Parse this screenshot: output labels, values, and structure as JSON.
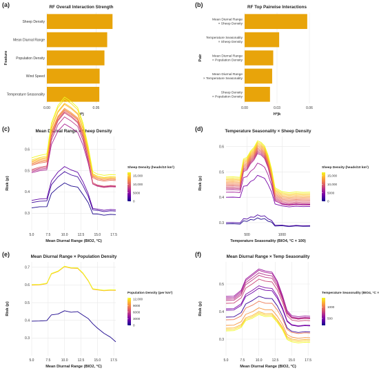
{
  "chart_data": [
    {
      "id": "a",
      "panel_label": "(a)",
      "type": "bar",
      "orientation": "horizontal",
      "title": "RF Overall Interaction Strength",
      "xlabel": "H²j",
      "ylabel": "Feature",
      "categories": [
        "Sheep Density",
        "Mean Diurnal Range",
        "Population Density",
        "Wind Speed",
        "Temperature Seasonality"
      ],
      "values": [
        0.0667,
        0.0613,
        0.0585,
        0.0536,
        0.0533
      ],
      "xlim": [
        0,
        0.07
      ],
      "xticks": [
        "0.00",
        "0.05"
      ],
      "xtick_values": [
        0,
        0.05
      ],
      "bar_color": "#E8A40A",
      "grid": true
    },
    {
      "id": "b",
      "panel_label": "(b)",
      "type": "bar",
      "orientation": "horizontal",
      "title": "RF Top Pairwise Interactions",
      "xlabel": "H²jk",
      "ylabel": "Pair",
      "categories": [
        [
          "Mean Diurnal Range",
          "× Sheep Density"
        ],
        [
          "Temperature Seasonality",
          "× Sheep Density"
        ],
        [
          "Mean Diurnal Range",
          "× Population Density"
        ],
        [
          "Mean Diurnal Range",
          "× Temperature Seasonality"
        ],
        [
          "Sheep Density",
          "× Population Density"
        ]
      ],
      "values": [
        0.058,
        0.032,
        0.0265,
        0.0255,
        0.0235
      ],
      "xlim": [
        0,
        0.06
      ],
      "xticks": [
        "0.00",
        "0.03",
        "0.06"
      ],
      "xtick_values": [
        0,
        0.03,
        0.06
      ],
      "bar_color": "#E8A40A",
      "grid": true
    },
    {
      "id": "c",
      "panel_label": "(c)",
      "type": "line",
      "title": "Mean Diurnal Range × Sheep Density",
      "xlabel": "Mean Diurnal Range (BIO2, °C)",
      "ylabel": "Risk (p)",
      "xlim": [
        5,
        17.8
      ],
      "ylim": [
        0.22,
        0.66
      ],
      "xticks": [
        "5.0",
        "7.5",
        "10.0",
        "12.5",
        "15.0",
        "17.5"
      ],
      "xtick_values": [
        5,
        7.5,
        10,
        12.5,
        15,
        17.5
      ],
      "yticks": [
        "0.3",
        "0.4",
        "0.5",
        "0.6"
      ],
      "ytick_values": [
        0.3,
        0.4,
        0.5,
        0.6
      ],
      "legend": {
        "title": "Sheep Density (heads/10 km²)",
        "ticks": [
          "15,000",
          "10,000",
          "5000",
          "0"
        ],
        "tick_values": [
          15000,
          10000,
          5000,
          0
        ],
        "range": [
          0,
          17000
        ],
        "position": "right"
      },
      "x": [
        5.0,
        6.2,
        7.3,
        8.0,
        9.0,
        10.0,
        11.0,
        12.0,
        12.8,
        13.6,
        14.3,
        15.0,
        16.0,
        17.0,
        17.8
      ],
      "template": [
        0.0,
        0.01,
        0.02,
        0.16,
        0.25,
        0.28,
        0.27,
        0.23,
        0.17,
        0.05,
        -0.06,
        -0.08,
        -0.08,
        -0.08,
        -0.08
      ],
      "series": [
        {
          "value": 17000,
          "base": 0.56,
          "amp": 1.0,
          "curve": 0.55
        },
        {
          "value": 16000,
          "base": 0.55,
          "amp": 1.0,
          "curve": 0.55
        },
        {
          "value": 15000,
          "base": 0.545,
          "amp": 0.95,
          "curve": 0.55
        },
        {
          "value": 14000,
          "base": 0.54,
          "amp": 0.95,
          "curve": 0.55
        },
        {
          "value": 13000,
          "base": 0.535,
          "amp": 0.9,
          "curve": 0.55
        },
        {
          "value": 12000,
          "base": 0.53,
          "amp": 0.9,
          "curve": 0.55
        },
        {
          "value": 11000,
          "base": 0.525,
          "amp": 0.9,
          "curve": 0.55
        },
        {
          "value": 9500,
          "base": 0.505,
          "amp": 0.95,
          "curve": 0.55
        },
        {
          "value": 8500,
          "base": 0.5,
          "amp": 0.95,
          "curve": 0.55
        },
        {
          "value": 7500,
          "base": 0.495,
          "amp": 0.9,
          "curve": 0.55
        },
        {
          "value": 6500,
          "base": 0.49,
          "amp": 0.8,
          "curve": 0.55
        },
        {
          "value": 3000,
          "base": 0.36,
          "amp": 0.55,
          "curve": 0.55
        },
        {
          "value": 1500,
          "base": 0.35,
          "amp": 0.5,
          "curve": 0.55
        },
        {
          "value": 500,
          "base": 0.325,
          "amp": 0.4,
          "curve": 0.55
        }
      ]
    },
    {
      "id": "d",
      "panel_label": "(d)",
      "type": "line",
      "title": "Temperature Seasonality × Sheep Density",
      "xlabel": "Temperature Seasonality (BIO4, °C × 100)",
      "ylabel": "Risk (p)",
      "xlim": [
        200,
        1400
      ],
      "ylim": [
        0.27,
        0.64
      ],
      "xticks": [
        "500",
        "1000"
      ],
      "xtick_values": [
        500,
        1000
      ],
      "yticks": [
        "0.3",
        "0.4",
        "0.5",
        "0.6"
      ],
      "ytick_values": [
        0.3,
        0.4,
        0.5,
        0.6
      ],
      "legend": {
        "title": "Sheep Density (heads/10 km²)",
        "ticks": [
          "15,000",
          "10,000",
          "5000",
          "0"
        ],
        "tick_values": [
          15000,
          10000,
          5000,
          0
        ],
        "range": [
          0,
          17000
        ],
        "position": "right"
      },
      "x": [
        200,
        300,
        400,
        450,
        500,
        550,
        600,
        650,
        700,
        750,
        800,
        850,
        900,
        1000,
        1100,
        1200,
        1300,
        1400
      ],
      "template": [
        0.0,
        0.0,
        0.0,
        0.07,
        0.08,
        0.1,
        0.12,
        0.14,
        0.14,
        0.12,
        0.09,
        0.03,
        -0.04,
        -0.06,
        -0.06,
        -0.06,
        -0.06,
        -0.06
      ],
      "series": [
        {
          "value": 17000,
          "base": 0.48,
          "amp": 1.0,
          "curve": 0.3
        },
        {
          "value": 16000,
          "base": 0.475,
          "amp": 1.0,
          "curve": 0.3
        },
        {
          "value": 15000,
          "base": 0.47,
          "amp": 1.0,
          "curve": 0.3
        },
        {
          "value": 14000,
          "base": 0.465,
          "amp": 1.0,
          "curve": 0.3
        },
        {
          "value": 13000,
          "base": 0.46,
          "amp": 1.0,
          "curve": 0.3
        },
        {
          "value": 12000,
          "base": 0.455,
          "amp": 1.0,
          "curve": 0.3
        },
        {
          "value": 11000,
          "base": 0.45,
          "amp": 1.0,
          "curve": 0.3
        },
        {
          "value": 10000,
          "base": 0.445,
          "amp": 1.0,
          "curve": 0.3
        },
        {
          "value": 9000,
          "base": 0.44,
          "amp": 1.0,
          "curve": 0.3
        },
        {
          "value": 8000,
          "base": 0.435,
          "amp": 1.0,
          "curve": 0.3
        },
        {
          "value": 7000,
          "base": 0.43,
          "amp": 1.0,
          "curve": 0.3
        },
        {
          "value": 6000,
          "base": 0.42,
          "amp": 0.8,
          "curve": 0.3
        },
        {
          "value": 4000,
          "base": 0.4,
          "amp": 0.6,
          "curve": 0.3
        },
        {
          "value": 2000,
          "base": 0.3,
          "amp": 0.2,
          "curve": 0.3
        },
        {
          "value": 500,
          "base": 0.295,
          "amp": 0.15,
          "curve": 0.3
        }
      ]
    },
    {
      "id": "e",
      "panel_label": "(e)",
      "type": "line",
      "title": "Mean Diurnal Range × Population Density",
      "xlabel": "Mean Diurnal Range (BIO2, °C)",
      "ylabel": "Risk (p)",
      "xlim": [
        5,
        17.8
      ],
      "ylim": [
        0.2,
        0.73
      ],
      "xticks": [
        "5.0",
        "7.5",
        "10.0",
        "12.5",
        "15.0",
        "17.5"
      ],
      "xtick_values": [
        5,
        7.5,
        10,
        12.5,
        15,
        17.5
      ],
      "yticks": [
        "0.3",
        "0.4",
        "0.5",
        "0.6",
        "0.7"
      ],
      "ytick_values": [
        0.3,
        0.4,
        0.5,
        0.6,
        0.7
      ],
      "legend": {
        "title": "Population Density (per km²)",
        "ticks": [
          "12,000",
          "9000",
          "6000",
          "3000",
          "0"
        ],
        "tick_values": [
          12000,
          9000,
          6000,
          3000,
          0
        ],
        "range": [
          0,
          12500
        ],
        "position": "right"
      },
      "x": [
        5.0,
        6.2,
        7.3,
        8.0,
        9.0,
        10.0,
        11.0,
        12.0,
        12.8,
        13.6,
        14.3,
        15.0,
        16.0,
        17.0,
        17.8
      ],
      "template": [
        0.0,
        0.0,
        0.01,
        0.06,
        0.08,
        0.1,
        0.1,
        0.09,
        0.07,
        0.02,
        -0.02,
        -0.03,
        -0.03,
        -0.03,
        -0.03
      ],
      "series": [
        {
          "value": 12500,
          "base": 0.602,
          "amp": 1.0,
          "curve": 0.45
        },
        {
          "value": 11500,
          "base": 0.601,
          "amp": 1.0,
          "curve": 0.45
        },
        {
          "value": 10500,
          "base": 0.6,
          "amp": 1.0,
          "curve": 0.45
        },
        {
          "value": 9500,
          "base": 0.599,
          "amp": 1.0,
          "curve": 0.45
        },
        {
          "value": 400,
          "base": 0.395,
          "amp": 0.55,
          "curve": 0.45,
          "drop": -0.1
        }
      ]
    },
    {
      "id": "f",
      "panel_label": "(f)",
      "type": "line",
      "title": "Mean Diurnal Range × Temp Seasonality",
      "xlabel": "Mean Diurnal Range (BIO2, °C)",
      "ylabel": "Risk (p)",
      "xlim": [
        5,
        17.8
      ],
      "ylim": [
        0.24,
        0.58
      ],
      "xticks": [
        "5.0",
        "7.5",
        "10.0",
        "12.5",
        "15.0",
        "17.5"
      ],
      "xtick_values": [
        5,
        7.5,
        10,
        12.5,
        15,
        17.5
      ],
      "yticks": [
        "0.3",
        "0.4",
        "0.5"
      ],
      "ytick_values": [
        0.3,
        0.4,
        0.5
      ],
      "legend": {
        "title": "Temperature Seasonality (BIO4, °C × 100)",
        "ticks": [
          "1000",
          "500"
        ],
        "tick_values": [
          1000,
          500
        ],
        "range": [
          200,
          1400
        ],
        "position": "right"
      },
      "x": [
        5.0,
        6.2,
        7.3,
        8.0,
        9.0,
        10.0,
        11.0,
        12.0,
        12.8,
        13.6,
        14.3,
        15.0,
        16.0,
        17.0,
        17.8
      ],
      "template": [
        0.0,
        0.0,
        0.02,
        0.05,
        0.07,
        0.08,
        0.08,
        0.07,
        0.05,
        0.0,
        -0.04,
        -0.06,
        -0.06,
        -0.06,
        -0.06
      ],
      "series": [
        {
          "value": 600,
          "base": 0.455,
          "amp": 1.2,
          "curve": 0.4
        },
        {
          "value": 650,
          "base": 0.45,
          "amp": 1.2,
          "curve": 0.4
        },
        {
          "value": 700,
          "base": 0.445,
          "amp": 1.15,
          "curve": 0.4
        },
        {
          "value": 750,
          "base": 0.44,
          "amp": 1.1,
          "curve": 0.4
        },
        {
          "value": 800,
          "base": 0.43,
          "amp": 1.05,
          "curve": 0.4
        },
        {
          "value": 500,
          "base": 0.41,
          "amp": 1.0,
          "curve": 0.4
        },
        {
          "value": 450,
          "base": 0.405,
          "amp": 0.95,
          "curve": 0.4
        },
        {
          "value": 300,
          "base": 0.38,
          "amp": 0.9,
          "curve": 0.4
        },
        {
          "value": 1000,
          "base": 0.37,
          "amp": 0.8,
          "curve": 0.4
        },
        {
          "value": 1100,
          "base": 0.35,
          "amp": 0.75,
          "curve": 0.4
        },
        {
          "value": 1200,
          "base": 0.34,
          "amp": 0.7,
          "curve": 0.4
        },
        {
          "value": 1300,
          "base": 0.335,
          "amp": 0.7,
          "curve": 0.4
        },
        {
          "value": 1400,
          "base": 0.33,
          "amp": 0.7,
          "curve": 0.4
        }
      ]
    }
  ]
}
